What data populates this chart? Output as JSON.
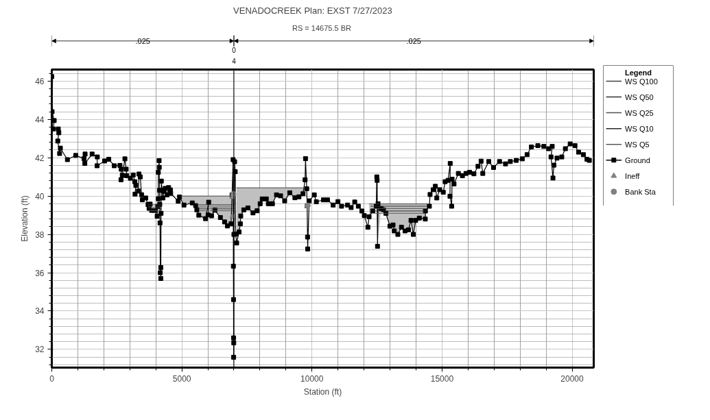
{
  "chart_data": {
    "type": "line",
    "title": "VENADOCREEK      Plan: EXST    7/27/2023",
    "subtitle": "RS = 14675.5  BR",
    "xlabel": "Station (ft)",
    "ylabel": "Elevation (ft)",
    "legend_title": "Legend",
    "legend": "top right",
    "grid": true,
    "xlim": [
      0,
      20830
    ],
    "ylim": [
      31.05,
      46.6
    ],
    "xticks": [
      0,
      {
        "value": 1000,
        "label": null
      },
      {
        "value": 2000,
        "label": null
      },
      {
        "value": 3000,
        "label": null
      },
      {
        "value": 4000,
        "label": null
      },
      5000,
      {
        "value": 6000,
        "label": null
      },
      {
        "value": 7000,
        "label": null
      },
      {
        "value": 8000,
        "label": null
      },
      {
        "value": 9000,
        "label": null
      },
      10000,
      {
        "value": 11000,
        "label": null
      },
      {
        "value": 12000,
        "label": null
      },
      {
        "value": 13000,
        "label": null
      },
      {
        "value": 14000,
        "label": null
      },
      15000,
      {
        "value": 16000,
        "label": null
      },
      {
        "value": 17000,
        "label": null
      },
      {
        "value": 18000,
        "label": null
      },
      {
        "value": 19000,
        "label": null
      },
      20000
    ],
    "yticks": [
      {
        "value": 31.2,
        "label": null
      },
      {
        "value": 31.6,
        "label": null
      },
      32,
      {
        "value": 32.4,
        "label": null
      },
      {
        "value": 32.8,
        "label": null
      },
      {
        "value": 33.2,
        "label": null
      },
      {
        "value": 33.6,
        "label": null
      },
      34,
      {
        "value": 34.4,
        "label": null
      },
      {
        "value": 34.8,
        "label": null
      },
      {
        "value": 35.2,
        "label": null
      },
      {
        "value": 35.6,
        "label": null
      },
      36,
      {
        "value": 36.4,
        "label": null
      },
      {
        "value": 36.8,
        "label": null
      },
      {
        "value": 37.2,
        "label": null
      },
      {
        "value": 37.6,
        "label": null
      },
      38,
      {
        "value": 38.4,
        "label": null
      },
      {
        "value": 38.8,
        "label": null
      },
      {
        "value": 39.2,
        "label": null
      },
      {
        "value": 39.6,
        "label": null
      },
      40,
      {
        "value": 40.4,
        "label": null
      },
      {
        "value": 40.8,
        "label": null
      },
      {
        "value": 41.2,
        "label": null
      },
      {
        "value": 41.6,
        "label": null
      },
      42,
      {
        "value": 42.4,
        "label": null
      },
      {
        "value": 42.8,
        "label": null
      },
      {
        "value": 43.2,
        "label": null
      },
      {
        "value": 43.6,
        "label": null
      },
      44,
      {
        "value": 44.4,
        "label": null
      },
      {
        "value": 44.8,
        "label": null
      },
      {
        "value": 45.2,
        "label": null
      },
      {
        "value": 45.6,
        "label": null
      },
      46,
      {
        "value": 46.4,
        "label": null
      }
    ],
    "annotations": [
      ".025",
      "0",
      "4",
      ".025"
    ],
    "ref_lines": [
      {
        "axis": "x",
        "value": 7000,
        "color": "#000000"
      }
    ],
    "series": [
      {
        "name": "WS Q100",
        "color": "#404040",
        "x": [
          4930,
          5080,
          5400,
          5530,
          5575,
          5650,
          5910,
          6030,
          6140,
          6270,
          6480,
          6640,
          6750,
          6890,
          6960,
          null,
          7106,
          7200,
          7248,
          7263,
          7381,
          7538,
          7734,
          7891,
          8009,
          8088,
          8245,
          8323,
          8480,
          8637,
          8794,
          8951,
          9147,
          9344,
          9501,
          9658,
          9740,
          null,
          12200,
          12335,
          12473,
          12519,
          12657,
          12749,
          12841,
          12998,
          13117,
          13163,
          13301,
          13439,
          13577,
          13715,
          13807,
          13896,
          13988,
          14126,
          14356,
          14450
        ],
        "values": [
          40.0,
          40.0,
          40.0,
          40.0,
          40.0,
          40.0,
          40.0,
          40.0,
          40.0,
          40.0,
          40.0,
          40.0,
          40.0,
          40.0,
          40.0,
          null,
          40.43,
          40.43,
          40.43,
          40.43,
          40.43,
          40.43,
          40.43,
          40.43,
          40.43,
          40.43,
          40.43,
          40.43,
          40.43,
          40.43,
          40.43,
          40.43,
          40.43,
          40.43,
          40.43,
          40.43,
          40.43,
          null,
          39.59,
          39.59,
          39.59,
          39.59,
          39.59,
          39.59,
          39.59,
          39.59,
          39.59,
          39.59,
          39.59,
          39.59,
          39.59,
          39.59,
          39.59,
          39.59,
          39.59,
          39.59,
          39.59,
          39.59
        ],
        "upper": [
          40.0,
          40.0,
          40.0,
          40.0,
          40.0,
          40.0,
          40.0,
          40.0,
          40.0,
          40.0,
          40.0,
          40.0,
          40.0,
          40.0,
          40.0,
          null,
          40.43,
          40.43,
          40.43,
          40.43,
          40.43,
          40.43,
          40.43,
          40.43,
          40.43,
          40.43,
          40.43,
          40.43,
          40.43,
          40.43,
          40.43,
          40.43,
          40.43,
          40.43,
          40.43,
          40.43,
          40.43,
          null,
          39.59,
          39.59,
          39.59,
          39.59,
          39.59,
          39.59,
          39.59,
          39.59,
          39.59,
          39.59,
          39.59,
          39.59,
          39.59,
          39.59,
          39.59,
          39.59,
          39.59,
          39.59,
          39.59,
          39.59
        ],
        "lower": [
          39.9,
          39.53,
          39.64,
          39.5,
          39.28,
          39.0,
          38.82,
          39.68,
          38.97,
          39.26,
          38.88,
          38.65,
          38.44,
          38.55,
          39.0,
          null,
          37.55,
          38.13,
          38.55,
          38.96,
          39.28,
          39.38,
          39.12,
          39.23,
          39.6,
          39.85,
          39.85,
          39.6,
          39.6,
          40.06,
          40.01,
          39.75,
          40.17,
          39.91,
          39.96,
          40.12,
          40.43,
          null,
          38.92,
          39.22,
          39.47,
          37.38,
          39.35,
          39.28,
          39.1,
          38.43,
          38.49,
          38.18,
          38.0,
          38.37,
          38.18,
          38.24,
          38.73,
          38.0,
          38.73,
          38.85,
          38.8,
          39.59
        ]
      },
      {
        "name": "WS Q50",
        "color": "#303030",
        "x": [
          3680,
          4240,
          null,
          5570,
          6960,
          null,
          12250,
          14420
        ],
        "values": [
          39.54,
          39.54,
          null,
          39.54,
          39.54,
          null,
          39.47,
          39.47
        ]
      },
      {
        "name": "WS Q25",
        "color": "#505050",
        "x": [
          3700,
          4230,
          null,
          5600,
          6960,
          null,
          12300,
          14400
        ],
        "values": [
          39.43,
          39.43,
          null,
          39.43,
          39.43,
          null,
          39.35,
          39.35
        ]
      },
      {
        "name": "WS Q10",
        "color": "#282828",
        "x": [
          3720,
          4220,
          null,
          5630,
          6960,
          null,
          12350,
          14380
        ],
        "values": [
          39.33,
          39.33,
          null,
          39.33,
          39.33,
          null,
          39.22,
          39.22
        ]
      },
      {
        "name": "WS Q5",
        "color": "#5a5a5a",
        "x": [
          3740,
          4210,
          null,
          5660,
          6960,
          null,
          12400,
          14360
        ],
        "values": [
          39.23,
          39.23,
          null,
          39.23,
          39.23,
          null,
          39.1,
          39.1
        ]
      },
      {
        "name": "Ground",
        "color": "#000000",
        "marker": "square",
        "x": [
          0,
          10,
          92,
          60,
          250,
          270,
          230,
          300,
          330,
          600,
          920,
          1240,
          1280,
          1270,
          1550,
          1750,
          1740,
          2030,
          2190,
          2400,
          2620,
          2670,
          2660,
          2710,
          2810,
          2860,
          2880,
          3020,
          3130,
          3190,
          3230,
          3200,
          3330,
          3350,
          3400,
          3450,
          3480,
          3610,
          3700,
          3780,
          3740,
          3840,
          3960,
          4050,
          4070,
          4090,
          4095,
          4125,
          4130,
          4140,
          4150,
          4160,
          4170,
          4190,
          4190,
          4200,
          4210,
          4240,
          4270,
          4310,
          4360,
          4430,
          4490,
          4560,
          4570,
          4860,
          4910,
          5080,
          5400,
          5530,
          5575,
          5650,
          5910,
          6030,
          6010,
          6140,
          6270,
          6480,
          6640,
          6750,
          6890,
          6930,
          6970,
          6980,
          6985,
          6988,
          6990,
          6995,
          7000,
          7028,
          7051,
          7067,
          7106,
          7200,
          7248,
          7263,
          7381,
          7538,
          7734,
          7891,
          8009,
          8088,
          8245,
          8323,
          8480,
          8637,
          8794,
          8951,
          9147,
          9344,
          9501,
          9658,
          9736,
          9752,
          9799,
          9815,
          9830,
          9835,
          9893,
          10089,
          10168,
          10442,
          10599,
          10816,
          10999,
          11138,
          11368,
          11506,
          11644,
          11782,
          11920,
          12012,
          12150,
          12196,
          12335,
          12473,
          12491,
          12505,
          12519,
          12540,
          12657,
          12749,
          12841,
          12998,
          13117,
          13163,
          13301,
          13439,
          13577,
          13715,
          13807,
          13896,
          13988,
          14126,
          14356,
          14360,
          14513,
          14540,
          14660,
          14743,
          14798,
          14909,
          15047,
          15120,
          15231,
          15314,
          15305,
          15369,
          15387,
          15461,
          15627,
          15783,
          15921,
          16059,
          16225,
          16382,
          16501,
          16566,
          16796,
          16980,
          17210,
          17440,
          17624,
          17854,
          18084,
          18269,
          18434,
          18682,
          18913,
          19097,
          19235,
          19189,
          19263,
          19300,
          19419,
          19603,
          19741,
          19925,
          20110,
          20248,
          20432,
          20570,
          20662
        ],
        "values": [
          46.23,
          44.4,
          43.94,
          43.5,
          43.5,
          43.3,
          42.87,
          42.22,
          42.5,
          41.9,
          42.12,
          41.95,
          42.19,
          41.7,
          42.19,
          42.04,
          41.58,
          41.83,
          41.92,
          41.58,
          41.6,
          41.4,
          40.85,
          41.08,
          41.94,
          41.4,
          41.06,
          40.93,
          41.1,
          40.75,
          40.56,
          40.1,
          40.26,
          41.15,
          41.0,
          40.07,
          39.8,
          39.9,
          39.56,
          39.58,
          39.36,
          39.25,
          39.25,
          38.95,
          39.46,
          39.86,
          41.24,
          41.85,
          41.5,
          40.3,
          39.56,
          38.6,
          36.0,
          36.27,
          35.7,
          39.1,
          40.78,
          40.3,
          39.9,
          40.25,
          40.4,
          40.06,
          40.44,
          40.32,
          40.14,
          39.73,
          39.95,
          39.53,
          39.64,
          39.5,
          39.28,
          39.0,
          38.82,
          39.68,
          39.02,
          38.97,
          39.26,
          38.88,
          38.65,
          38.44,
          38.55,
          40.06,
          41.9,
          36.34,
          34.6,
          32.6,
          31.59,
          32.34,
          38.0,
          41.79,
          41.27,
          38.02,
          37.55,
          38.13,
          38.55,
          38.96,
          39.28,
          39.38,
          39.12,
          39.23,
          39.6,
          39.85,
          39.85,
          39.6,
          39.6,
          40.06,
          40.01,
          39.75,
          40.17,
          39.91,
          39.96,
          40.12,
          40.85,
          41.95,
          40.38,
          39.49,
          37.86,
          37.24,
          39.75,
          40.06,
          39.7,
          39.8,
          39.8,
          39.53,
          39.71,
          39.47,
          39.53,
          39.4,
          39.69,
          39.47,
          39.22,
          38.98,
          38.37,
          38.92,
          39.22,
          39.47,
          41.0,
          40.82,
          37.38,
          39.6,
          39.35,
          39.28,
          39.1,
          38.43,
          38.49,
          38.18,
          38.0,
          38.37,
          38.18,
          38.24,
          38.73,
          38.0,
          38.73,
          38.85,
          38.8,
          39.22,
          39.47,
          40.08,
          40.33,
          40.51,
          39.9,
          40.33,
          40.2,
          40.75,
          40.82,
          41.7,
          39.99,
          39.47,
          40.88,
          40.63,
          41.18,
          41.06,
          41.18,
          41.24,
          41.16,
          41.55,
          41.82,
          41.18,
          41.8,
          41.49,
          41.8,
          41.68,
          41.8,
          41.86,
          41.94,
          42.16,
          42.56,
          42.63,
          42.59,
          42.47,
          42.59,
          42.04,
          40.94,
          41.61,
          41.98,
          42.04,
          42.47,
          42.72,
          42.63,
          42.29,
          42.16,
          41.92,
          41.86
        ]
      },
      {
        "name": "Ineff",
        "type": "scatter",
        "color": "#808080",
        "marker": "triangle",
        "x": [
          6940,
          6950
        ],
        "values": [
          39.95,
          38.95
        ]
      },
      {
        "name": "Bank Sta",
        "type": "scatter",
        "color": "#808080",
        "marker": "circle",
        "x": [
          6980,
          9830
        ],
        "values": [
          40.1,
          39.5
        ]
      }
    ]
  }
}
